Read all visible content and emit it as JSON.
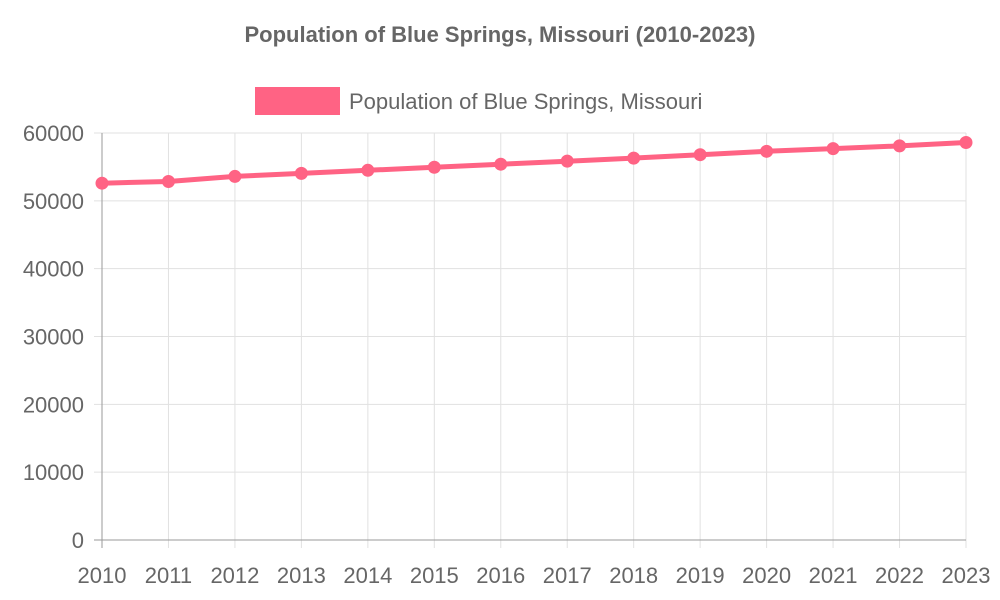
{
  "chart_data": {
    "type": "line",
    "title": "Population of Blue Springs, Missouri (2010-2023)",
    "xlabel": "",
    "ylabel": "",
    "x": [
      "2010",
      "2011",
      "2012",
      "2013",
      "2014",
      "2015",
      "2016",
      "2017",
      "2018",
      "2019",
      "2020",
      "2021",
      "2022",
      "2023"
    ],
    "ylim": [
      0,
      60000
    ],
    "y_ticks": [
      "0",
      "10000",
      "20000",
      "30000",
      "40000",
      "50000",
      "60000"
    ],
    "grid": true,
    "legend_position": "top-center",
    "series": [
      {
        "name": "Population of Blue Springs, Missouri",
        "color": "#ff6384",
        "values": [
          52600,
          52850,
          53600,
          54050,
          54500,
          54950,
          55400,
          55850,
          56300,
          56800,
          57300,
          57700,
          58100,
          58600
        ]
      }
    ]
  }
}
